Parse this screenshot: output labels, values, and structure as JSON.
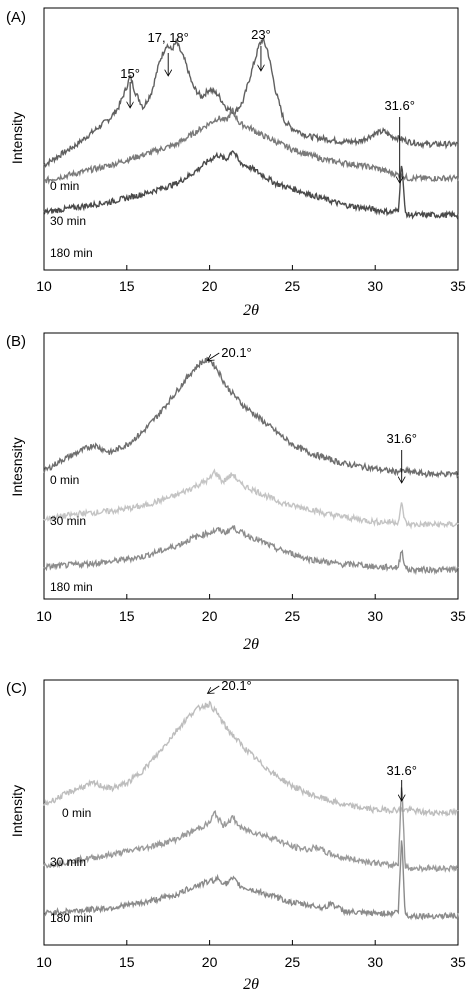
{
  "chart_data": [
    {
      "type": "line",
      "panel_label": "(A)",
      "ylabel": "Intensity",
      "xlabel": "2θ",
      "xlim": [
        10,
        35
      ],
      "x_ticks": [
        "10",
        "15",
        "20",
        "25",
        "30",
        "35"
      ],
      "grid": false,
      "series": [
        {
          "name": "0 min",
          "color": "#606060",
          "x": [
            10,
            11,
            12,
            13,
            14,
            14.5,
            15.0,
            15.2,
            15.5,
            16.0,
            16.5,
            17.0,
            17.4,
            17.7,
            18.0,
            18.5,
            19.0,
            19.5,
            20.0,
            20.5,
            21.0,
            21.5,
            22.0,
            22.5,
            23.0,
            23.2,
            23.5,
            24.0,
            24.5,
            25,
            26,
            27,
            28,
            29,
            30,
            30.5,
            31,
            31.6,
            32,
            33,
            34,
            35
          ],
          "y": [
            0.4,
            0.44,
            0.48,
            0.53,
            0.58,
            0.62,
            0.7,
            0.74,
            0.68,
            0.62,
            0.68,
            0.8,
            0.86,
            0.84,
            0.87,
            0.8,
            0.7,
            0.66,
            0.69,
            0.67,
            0.62,
            0.6,
            0.64,
            0.75,
            0.86,
            0.88,
            0.84,
            0.68,
            0.57,
            0.54,
            0.51,
            0.5,
            0.49,
            0.49,
            0.52,
            0.53,
            0.51,
            0.5,
            0.49,
            0.48,
            0.48,
            0.48
          ]
        },
        {
          "name": "30 min",
          "color": "#7a7a7a",
          "x": [
            10,
            12,
            14,
            16,
            18,
            19,
            20,
            20.5,
            21,
            21.4,
            21.8,
            22.5,
            23,
            24,
            25,
            26,
            27,
            28,
            29,
            30,
            31,
            31.6,
            32,
            33,
            34,
            35
          ],
          "y": [
            0.34,
            0.37,
            0.4,
            0.44,
            0.48,
            0.52,
            0.56,
            0.58,
            0.57,
            0.61,
            0.56,
            0.54,
            0.52,
            0.49,
            0.46,
            0.44,
            0.42,
            0.41,
            0.4,
            0.39,
            0.37,
            0.36,
            0.35,
            0.35,
            0.35,
            0.35
          ]
        },
        {
          "name": "180 min",
          "color": "#4a4a4a",
          "x": [
            10,
            12,
            14,
            16,
            18,
            19,
            20,
            20.5,
            21,
            21.4,
            21.8,
            22.5,
            23,
            24,
            25,
            26,
            27,
            28,
            29,
            30,
            31,
            31.4,
            31.6,
            31.8,
            32,
            33,
            34,
            35
          ],
          "y": [
            0.22,
            0.24,
            0.26,
            0.29,
            0.33,
            0.37,
            0.42,
            0.44,
            0.42,
            0.46,
            0.41,
            0.39,
            0.37,
            0.33,
            0.31,
            0.29,
            0.27,
            0.25,
            0.24,
            0.23,
            0.22,
            0.23,
            0.42,
            0.22,
            0.21,
            0.21,
            0.21,
            0.21
          ]
        }
      ],
      "annotations": [
        {
          "text": "15°",
          "x": 15.2
        },
        {
          "text": "17, 18°",
          "x": 17.5
        },
        {
          "text": "23°",
          "x": 23.1
        },
        {
          "text": "31.6°",
          "x": 31.6
        }
      ]
    },
    {
      "type": "line",
      "panel_label": "(B)",
      "ylabel": "Intesnsity",
      "xlabel": "2θ",
      "xlim": [
        10,
        35
      ],
      "x_ticks": [
        "10",
        "15",
        "20",
        "25",
        "30",
        "35"
      ],
      "grid": false,
      "series": [
        {
          "name": "0 min",
          "color": "#6e6e6e",
          "x": [
            10,
            11,
            12,
            13,
            14,
            15,
            16,
            17,
            18,
            19,
            19.5,
            20.0,
            20.5,
            21,
            22,
            23,
            24,
            25,
            26,
            27,
            28,
            29,
            30,
            31,
            32,
            33,
            34,
            35
          ],
          "y": [
            0.48,
            0.52,
            0.55,
            0.58,
            0.55,
            0.58,
            0.63,
            0.7,
            0.78,
            0.86,
            0.89,
            0.9,
            0.86,
            0.8,
            0.73,
            0.68,
            0.63,
            0.58,
            0.55,
            0.53,
            0.51,
            0.5,
            0.49,
            0.48,
            0.48,
            0.47,
            0.47,
            0.47
          ]
        },
        {
          "name": "30 min",
          "color": "#c4c4c4",
          "x": [
            10,
            12,
            14,
            16,
            18,
            19,
            20,
            20.3,
            20.8,
            21.4,
            21.9,
            23,
            24,
            25,
            26,
            27,
            28,
            29,
            30,
            31,
            31.4,
            31.6,
            31.8,
            32,
            33,
            34,
            35
          ],
          "y": [
            0.3,
            0.32,
            0.33,
            0.35,
            0.39,
            0.42,
            0.45,
            0.48,
            0.44,
            0.47,
            0.43,
            0.4,
            0.37,
            0.35,
            0.34,
            0.32,
            0.31,
            0.3,
            0.29,
            0.29,
            0.29,
            0.36,
            0.29,
            0.28,
            0.28,
            0.28,
            0.28
          ]
        },
        {
          "name": "180 min",
          "color": "#8c8c8c",
          "x": [
            10,
            12,
            14,
            16,
            18,
            19,
            20,
            20.5,
            21,
            21.4,
            21.9,
            23,
            24,
            25,
            26,
            27,
            28,
            29,
            30,
            31,
            31.4,
            31.6,
            31.8,
            32,
            33,
            34,
            35
          ],
          "y": [
            0.12,
            0.13,
            0.14,
            0.16,
            0.2,
            0.23,
            0.25,
            0.26,
            0.25,
            0.27,
            0.25,
            0.22,
            0.19,
            0.17,
            0.15,
            0.14,
            0.13,
            0.13,
            0.12,
            0.12,
            0.12,
            0.19,
            0.12,
            0.11,
            0.11,
            0.11,
            0.11
          ]
        }
      ],
      "annotations": [
        {
          "text": "20.1°",
          "x": 20.1
        },
        {
          "text": "31.6°",
          "x": 31.6
        }
      ]
    },
    {
      "type": "line",
      "panel_label": "(C)",
      "ylabel": "Intensity",
      "xlabel": "2θ",
      "xlim": [
        10,
        35
      ],
      "x_ticks": [
        "10",
        "15",
        "20",
        "25",
        "30",
        "35"
      ],
      "grid": false,
      "series": [
        {
          "name": "0 min",
          "color": "#bdbdbd",
          "x": [
            10,
            11,
            12,
            13,
            14,
            15,
            16,
            17,
            18,
            19,
            19.5,
            20.0,
            20.5,
            21,
            22,
            23,
            24,
            25,
            26,
            27,
            28,
            29,
            30,
            31,
            31.6,
            32,
            33,
            34,
            35
          ],
          "y": [
            0.53,
            0.56,
            0.59,
            0.61,
            0.59,
            0.61,
            0.66,
            0.73,
            0.81,
            0.88,
            0.9,
            0.91,
            0.87,
            0.82,
            0.75,
            0.69,
            0.64,
            0.6,
            0.57,
            0.55,
            0.53,
            0.52,
            0.51,
            0.51,
            0.51,
            0.51,
            0.5,
            0.5,
            0.5
          ]
        },
        {
          "name": "30 min",
          "color": "#9a9a9a",
          "x": [
            10,
            12,
            14,
            15.5,
            17,
            18,
            19,
            20,
            20.3,
            20.8,
            21.4,
            21.9,
            23,
            24,
            25,
            26,
            26.5,
            27,
            28,
            29,
            30,
            31,
            31.4,
            31.6,
            31.8,
            32,
            33,
            34,
            35
          ],
          "y": [
            0.3,
            0.32,
            0.34,
            0.36,
            0.38,
            0.4,
            0.43,
            0.46,
            0.5,
            0.45,
            0.48,
            0.44,
            0.42,
            0.4,
            0.37,
            0.36,
            0.37,
            0.35,
            0.33,
            0.32,
            0.31,
            0.3,
            0.31,
            0.62,
            0.3,
            0.29,
            0.29,
            0.29,
            0.29
          ]
        },
        {
          "name": "180 min",
          "color": "#8a8a8a",
          "x": [
            10,
            12,
            14,
            16,
            18,
            19,
            20,
            20.5,
            21,
            21.4,
            21.9,
            23,
            24,
            25,
            26,
            27,
            27.3,
            28,
            29,
            30,
            31,
            31.4,
            31.6,
            31.8,
            32,
            33,
            34,
            35
          ],
          "y": [
            0.12,
            0.13,
            0.14,
            0.16,
            0.19,
            0.22,
            0.24,
            0.25,
            0.23,
            0.25,
            0.22,
            0.2,
            0.18,
            0.16,
            0.15,
            0.14,
            0.16,
            0.13,
            0.12,
            0.12,
            0.12,
            0.13,
            0.41,
            0.12,
            0.11,
            0.11,
            0.11,
            0.11
          ]
        }
      ],
      "annotations": [
        {
          "text": "20.1°",
          "x": 20.1
        },
        {
          "text": "31.6°",
          "x": 31.6
        }
      ]
    }
  ]
}
